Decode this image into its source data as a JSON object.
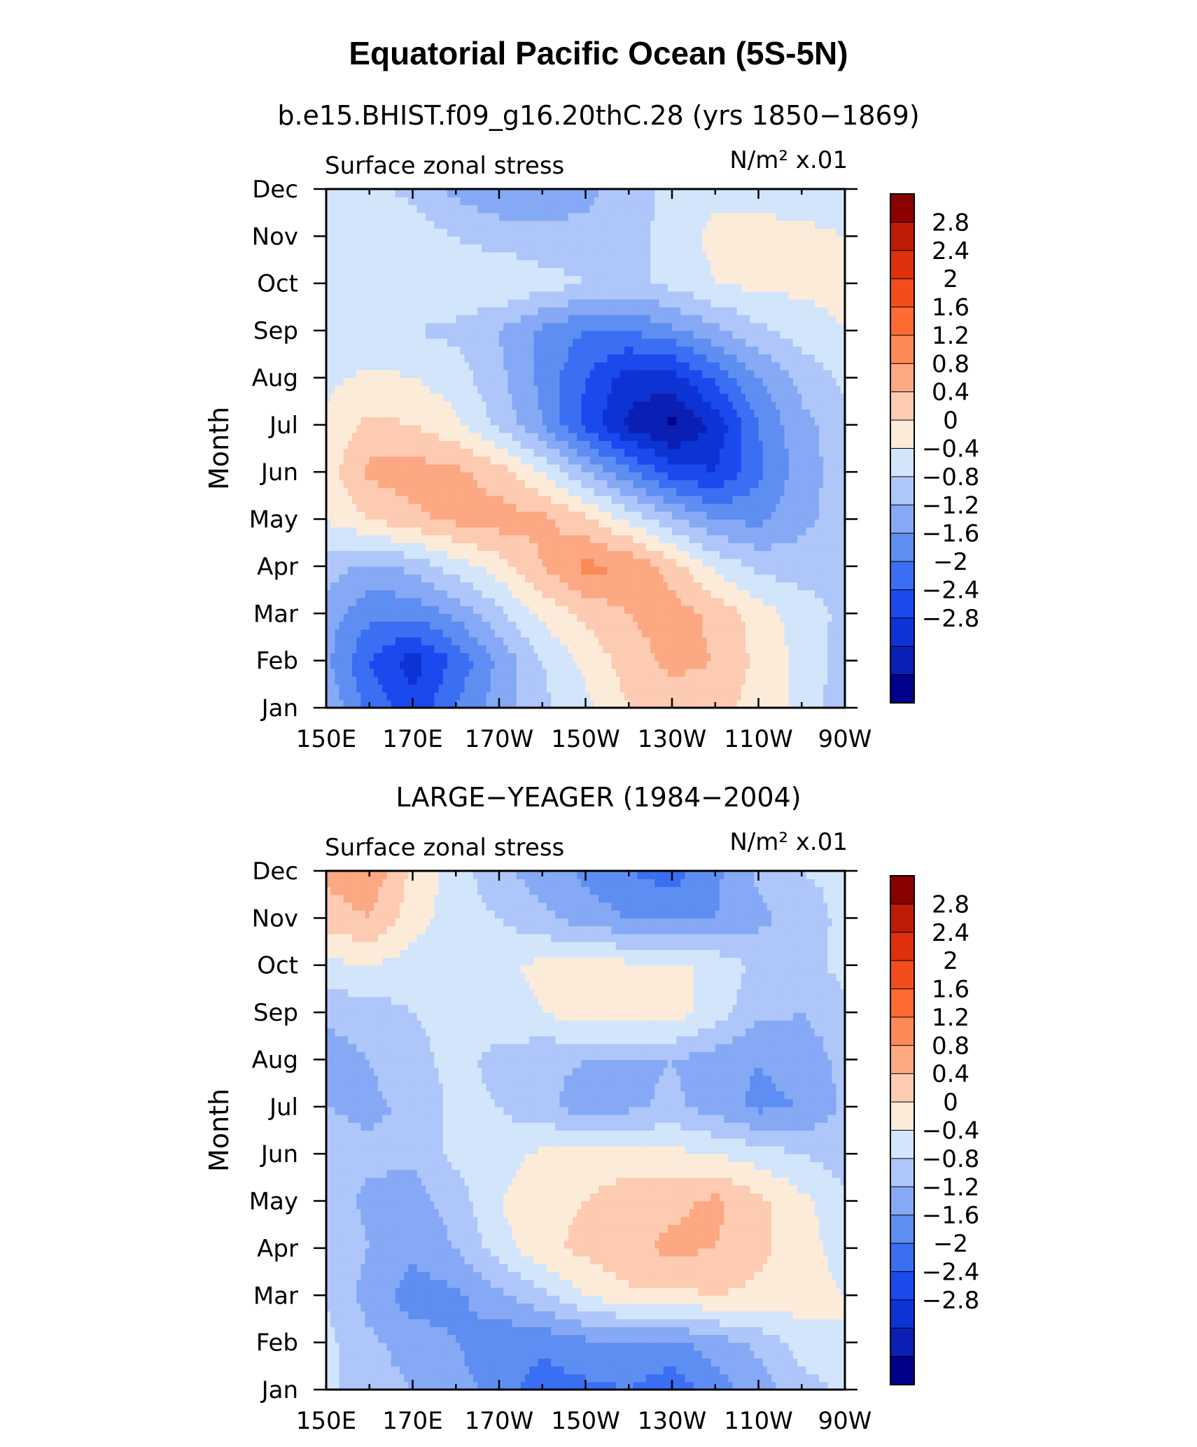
{
  "figure": {
    "title": "Equatorial Pacific Ocean (5S-5N)"
  },
  "colors": {
    "scale": [
      "#00008b",
      "#0a1fb4",
      "#0d33d4",
      "#1a49ee",
      "#3a6ef3",
      "#5f8ef2",
      "#86a9f5",
      "#aec6f9",
      "#d3e5fb",
      "#fdebd9",
      "#fccbb1",
      "#fba883",
      "#fc8a56",
      "#fd6a32",
      "#f34d1b",
      "#de300c",
      "#bd1c05",
      "#8b0000"
    ]
  },
  "chart_data": [
    {
      "type": "heatmap",
      "title": "b.e15.BHIST.f09_g16.20thC.28 (yrs 1850−1869)",
      "left_label": "Surface zonal stress",
      "right_label": "N/m² x.01",
      "ylabel": "Month",
      "x_ticks": [
        "150E",
        "170E",
        "170W",
        "150W",
        "130W",
        "110W",
        "90W"
      ],
      "x_tick_degE": [
        150,
        170,
        190,
        210,
        230,
        250,
        270
      ],
      "xlim_degE": [
        150,
        270
      ],
      "y_ticks": [
        "Jan",
        "Feb",
        "Mar",
        "Apr",
        "May",
        "Jun",
        "Jul",
        "Aug",
        "Sep",
        "Oct",
        "Nov",
        "Dec"
      ],
      "colorbar_labels": [
        "2.8",
        "2.4",
        "2",
        "1.6",
        "1.2",
        "0.8",
        "0.4",
        "0",
        "−0.4",
        "−0.8",
        "−1.2",
        "−1.6",
        "−2",
        "−2.4",
        "−2.8"
      ],
      "contour_levels": [
        -3.2,
        -2.8,
        -2.4,
        -2.0,
        -1.6,
        -1.2,
        -0.8,
        -0.4,
        0,
        0.4,
        0.8,
        1.2,
        1.6,
        2.0,
        2.4,
        2.8,
        3.2
      ],
      "lon_degE": [
        150,
        160,
        170,
        180,
        190,
        200,
        210,
        220,
        230,
        240,
        250,
        260,
        270
      ],
      "values_by_month": [
        [
          -0.5,
          -1.3,
          -1.9,
          -1.2,
          -0.6,
          -0.1,
          0.3,
          0.8,
          1.0,
          1.0,
          0.6,
          0.3,
          -0.3
        ],
        [
          -0.7,
          -1.6,
          -2.2,
          -1.5,
          -0.7,
          0.0,
          0.5,
          1.0,
          1.3,
          1.2,
          0.7,
          0.3,
          -0.2
        ],
        [
          -0.6,
          -1.1,
          -1.1,
          -0.7,
          -0.1,
          0.5,
          0.9,
          1.2,
          1.4,
          1.1,
          0.6,
          0.2,
          -0.1
        ],
        [
          -0.2,
          -0.5,
          -0.3,
          0.2,
          0.6,
          1.2,
          1.7,
          1.6,
          1.0,
          0.3,
          -0.1,
          -0.2,
          -0.1
        ],
        [
          0.4,
          0.8,
          1.1,
          1.3,
          1.4,
          1.3,
          0.9,
          0.3,
          -0.3,
          -0.8,
          -0.9,
          -0.5,
          -0.2
        ],
        [
          0.6,
          1.3,
          1.4,
          1.3,
          1.0,
          0.4,
          -0.4,
          -1.1,
          -1.8,
          -2.0,
          -1.3,
          -0.6,
          -0.2
        ],
        [
          0.5,
          0.9,
          0.8,
          0.5,
          -0.1,
          -0.8,
          -1.7,
          -2.5,
          -2.9,
          -2.3,
          -1.2,
          -0.5,
          -0.2
        ],
        [
          0.3,
          0.5,
          0.4,
          0.2,
          -0.3,
          -0.9,
          -1.6,
          -2.2,
          -2.2,
          -1.5,
          -0.8,
          -0.3,
          0.1
        ],
        [
          0.0,
          0.1,
          0.0,
          -0.1,
          -0.4,
          -0.9,
          -1.2,
          -1.2,
          -0.9,
          -0.5,
          -0.1,
          0.2,
          0.4
        ],
        [
          0.2,
          0.3,
          0.3,
          0.3,
          0.4,
          0.2,
          0.0,
          -0.1,
          0.1,
          0.4,
          0.5,
          0.5,
          0.5
        ],
        [
          0.3,
          0.3,
          0.2,
          0.0,
          -0.2,
          -0.3,
          -0.3,
          -0.2,
          0.2,
          0.5,
          0.5,
          0.5,
          0.4
        ],
        [
          0.2,
          0.1,
          -0.1,
          -0.5,
          -0.7,
          -0.6,
          -0.5,
          -0.2,
          0.1,
          0.3,
          0.3,
          0.2,
          0.2
        ]
      ]
    },
    {
      "type": "heatmap",
      "title": "LARGE−YEAGER (1984−2004)",
      "left_label": "Surface zonal stress",
      "right_label": "N/m² x.01",
      "ylabel": "Month",
      "x_ticks": [
        "150E",
        "170E",
        "170W",
        "150W",
        "130W",
        "110W",
        "90W"
      ],
      "x_tick_degE": [
        150,
        170,
        190,
        210,
        230,
        250,
        270
      ],
      "xlim_degE": [
        150,
        270
      ],
      "y_ticks": [
        "Jan",
        "Feb",
        "Mar",
        "Apr",
        "May",
        "Jun",
        "Jul",
        "Aug",
        "Sep",
        "Oct",
        "Nov",
        "Dec"
      ],
      "colorbar_labels": [
        "2.8",
        "2.4",
        "2",
        "1.6",
        "1.2",
        "0.8",
        "0.4",
        "0",
        "−0.4",
        "−0.8",
        "−1.2",
        "−1.6",
        "−2",
        "−2.4",
        "−2.8"
      ],
      "contour_levels": [
        -3.2,
        -2.8,
        -2.4,
        -2.0,
        -1.6,
        -1.2,
        -0.8,
        -0.4,
        0,
        0.4,
        0.8,
        1.2,
        1.6,
        2.0,
        2.4,
        2.8,
        3.2
      ],
      "lon_degE": [
        150,
        160,
        170,
        180,
        190,
        200,
        210,
        220,
        230,
        240,
        250,
        260,
        270
      ],
      "values_by_month": [
        [
          0.1,
          -0.2,
          -0.4,
          -0.6,
          -1.0,
          -1.4,
          -1.3,
          -1.2,
          -1.5,
          -1.0,
          -0.6,
          -0.2,
          0.1
        ],
        [
          0.1,
          -0.3,
          -0.6,
          -0.8,
          -1.1,
          -1.1,
          -0.9,
          -0.8,
          -0.9,
          -0.6,
          -0.3,
          0.2,
          0.4
        ],
        [
          0.0,
          -0.6,
          -1.0,
          -0.9,
          -0.5,
          -0.1,
          0.4,
          0.7,
          0.7,
          0.8,
          0.7,
          0.6,
          0.4
        ],
        [
          -0.1,
          -0.4,
          -0.7,
          -0.4,
          0.2,
          0.7,
          0.9,
          1.1,
          1.3,
          1.2,
          0.9,
          0.6,
          0.2
        ],
        [
          -0.2,
          -0.5,
          -0.6,
          -0.2,
          0.4,
          0.7,
          0.8,
          1.0,
          1.1,
          1.3,
          0.9,
          0.5,
          0.1
        ],
        [
          -0.2,
          -0.3,
          -0.3,
          0.1,
          0.2,
          0.5,
          0.6,
          0.6,
          0.5,
          0.4,
          0.2,
          0.0,
          -0.2
        ],
        [
          -0.4,
          -0.5,
          -0.3,
          0.1,
          0.0,
          -0.3,
          -0.6,
          -0.5,
          -0.3,
          -0.6,
          -0.9,
          -0.8,
          -0.3
        ],
        [
          -0.6,
          -0.4,
          -0.1,
          0.1,
          -0.1,
          -0.3,
          -0.4,
          -0.5,
          -0.4,
          -0.6,
          -0.8,
          -0.6,
          -0.3
        ],
        [
          -0.3,
          -0.2,
          0.0,
          0.1,
          0.2,
          0.4,
          0.6,
          0.7,
          0.6,
          0.2,
          -0.3,
          -0.4,
          -0.2
        ],
        [
          0.3,
          0.4,
          0.2,
          0.1,
          0.3,
          0.5,
          0.6,
          0.5,
          0.5,
          0.3,
          -0.1,
          -0.3,
          0.2
        ],
        [
          1.0,
          1.2,
          0.6,
          0.2,
          0.0,
          -0.3,
          -0.6,
          -0.8,
          -0.9,
          -0.8,
          -0.5,
          -0.2,
          0.1
        ],
        [
          1.3,
          1.5,
          0.7,
          0.2,
          -0.3,
          -0.6,
          -0.9,
          -1.2,
          -1.4,
          -0.9,
          -0.3,
          0.0,
          0.1
        ]
      ]
    }
  ]
}
